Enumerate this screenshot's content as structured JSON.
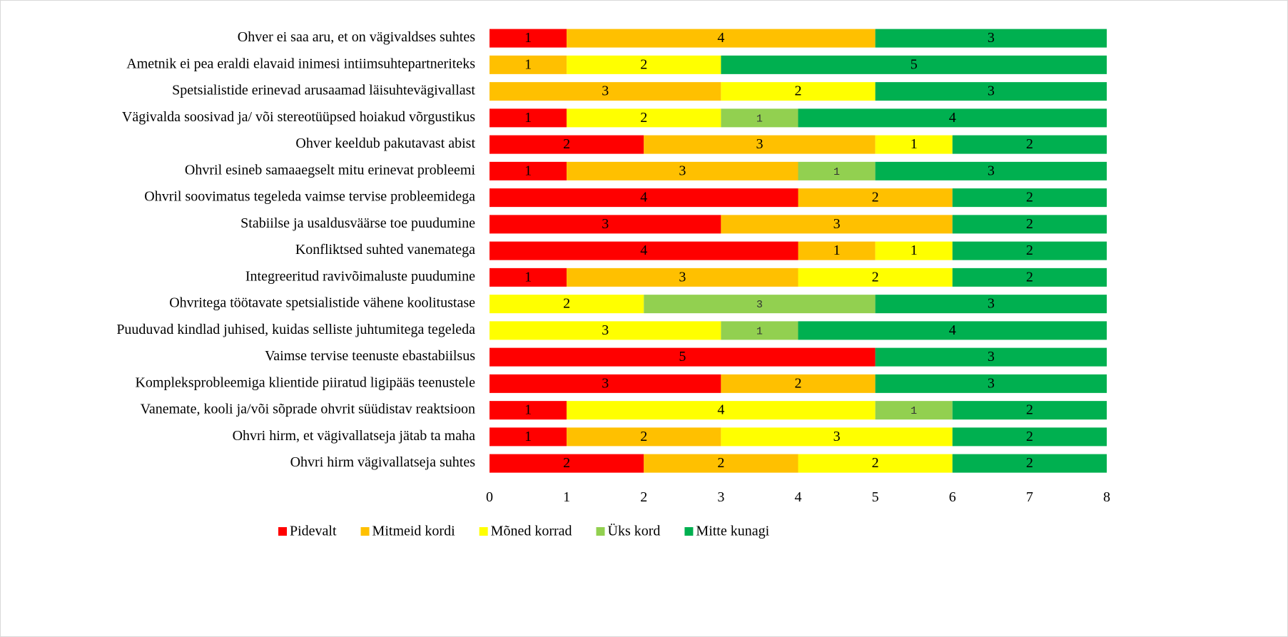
{
  "chart_data": {
    "type": "stacked-barh",
    "categories": [
      "Ohver ei saa aru, et on vägivaldses suhtes",
      "Ametnik ei pea eraldi elavaid inimesi intiimsuhtepartneriteks",
      "Spetsialistide erinevad arusaamad läisuhtevägivallast",
      "Vägivalda soosivad ja/ või stereotüüpsed hoiakud võrgustikus",
      "Ohver keeldub pakutavast abist",
      "Ohvril esineb samaaegselt mitu erinevat probleemi ",
      "Ohvril soovimatus tegeleda vaimse tervise probleemidega",
      "Stabiilse ja usaldusväärse toe puudumine",
      "Konfliktsed suhted vanematega",
      "Integreeritud ravivõimaluste puudumine ",
      "Ohvritega töötavate spetsialistide vähene koolitustase",
      "Puuduvad kindlad juhised, kuidas selliste juhtumitega tegeleda",
      "Vaimse tervise teenuste ebastabiilsus",
      "Kompleksprobleemiga klientide piiratud ligipääs teenustele",
      "Vanemate, kooli ja/või sõprade ohvrit süüdistav reaktsioon",
      "Ohvri hirm, et vägivallatseja jätab ta maha",
      "Ohvri hirm vägivallatseja suhtes"
    ],
    "series": [
      {
        "name": "Pidevalt",
        "color": "#ff0000",
        "values": [
          1,
          null,
          null,
          1,
          2,
          1,
          4,
          3,
          4,
          1,
          null,
          null,
          5,
          3,
          1,
          1,
          2
        ]
      },
      {
        "name": "Mitmeid kordi",
        "color": "#ffc000",
        "values": [
          4,
          1,
          3,
          null,
          3,
          3,
          2,
          3,
          1,
          3,
          null,
          null,
          null,
          2,
          null,
          2,
          2
        ]
      },
      {
        "name": "Mõned korrad",
        "color": "#ffff00",
        "values": [
          null,
          2,
          2,
          2,
          1,
          null,
          null,
          null,
          1,
          2,
          2,
          3,
          null,
          null,
          4,
          3,
          2
        ]
      },
      {
        "name": "Üks kord",
        "color": "#92d050",
        "values": [
          null,
          null,
          null,
          1,
          null,
          1,
          null,
          null,
          null,
          null,
          3,
          1,
          null,
          null,
          1,
          null,
          null
        ]
      },
      {
        "name": "Mitte kunagi",
        "color": "#00b050",
        "values": [
          3,
          5,
          3,
          4,
          2,
          3,
          2,
          2,
          2,
          2,
          3,
          4,
          3,
          3,
          2,
          2,
          2
        ]
      }
    ],
    "xlim": [
      0,
      8
    ],
    "xticks": [
      0,
      1,
      2,
      3,
      4,
      5,
      6,
      7,
      8
    ],
    "legend": "bottom"
  }
}
